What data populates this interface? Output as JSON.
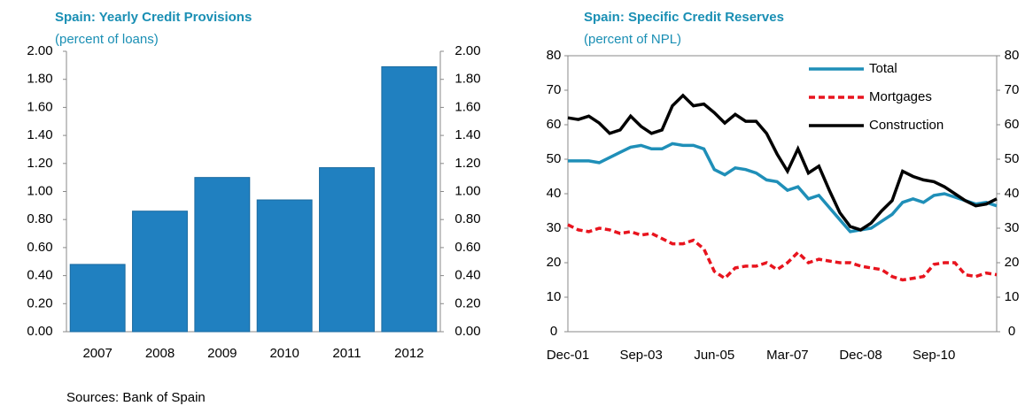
{
  "chart_data": [
    {
      "type": "bar",
      "title": "Spain: Yearly Credit Provisions",
      "subtitle": "(percent of loans)",
      "categories": [
        "2007",
        "2008",
        "2009",
        "2010",
        "2011",
        "2012"
      ],
      "values": [
        0.48,
        0.86,
        1.1,
        0.94,
        1.17,
        1.89
      ],
      "color": "#2080c0",
      "ylim": [
        0,
        2
      ],
      "yticks": [
        {
          "value": 0,
          "label": "0.00"
        },
        {
          "value": 0.2,
          "label": "0.20"
        },
        {
          "value": 0.4,
          "label": "0.40"
        },
        {
          "value": 0.6,
          "label": "0.60"
        },
        {
          "value": 0.8,
          "label": "0.80"
        },
        {
          "value": 1,
          "label": "1.00"
        },
        {
          "value": 1.2,
          "label": "1.20"
        },
        {
          "value": 1.4,
          "label": "1.40"
        },
        {
          "value": 1.6,
          "label": "1.60"
        },
        {
          "value": 1.8,
          "label": "1.80"
        },
        {
          "value": 2,
          "label": "2.00"
        }
      ],
      "y2lim": [
        0,
        2
      ],
      "y2ticks": [
        {
          "value": 0,
          "label": "0.00"
        },
        {
          "value": 0.2,
          "label": "0.20"
        },
        {
          "value": 0.4,
          "label": "0.40"
        },
        {
          "value": 0.6,
          "label": "0.60"
        },
        {
          "value": 0.8,
          "label": "0.80"
        },
        {
          "value": 1,
          "label": "1.00"
        },
        {
          "value": 1.2,
          "label": "1.20"
        },
        {
          "value": 1.4,
          "label": "1.40"
        },
        {
          "value": 1.6,
          "label": "1.60"
        },
        {
          "value": 1.8,
          "label": "1.80"
        },
        {
          "value": 2,
          "label": "2.00"
        }
      ],
      "grid": false
    },
    {
      "type": "line",
      "title": "Spain: Specific Credit Reserves",
      "subtitle": "(percent of NPL)",
      "categories": [
        "Dec-01",
        null,
        null,
        null,
        null,
        null,
        null,
        "Sep-03",
        null,
        null,
        null,
        null,
        null,
        null,
        "Jun-05",
        null,
        null,
        null,
        null,
        null,
        null,
        "Mar-07",
        null,
        null,
        null,
        null,
        null,
        null,
        "Dec-08",
        null,
        null,
        null,
        null,
        null,
        null,
        "Sep-10",
        null,
        null,
        null,
        null,
        null,
        null
      ],
      "series": [
        {
          "name": "Total",
          "color": "#1f8fb8",
          "dash": false,
          "values": [
            49.5,
            49.5,
            49.5,
            49,
            50.5,
            52,
            53.5,
            54,
            53,
            53,
            54.5,
            54,
            54,
            53,
            47,
            45.5,
            47.5,
            47,
            46,
            44,
            43.5,
            41,
            42,
            38.5,
            39.5,
            36,
            32.5,
            29,
            29.5,
            30,
            32,
            34,
            37.5,
            38.5,
            37.5,
            39.5,
            40,
            39,
            38,
            37,
            37.5,
            36.5
          ]
        },
        {
          "name": "Mortgages",
          "color": "#e8141e",
          "dash": true,
          "values": [
            31,
            29.5,
            29,
            30,
            29.5,
            28.5,
            29,
            28,
            28.5,
            27,
            25.5,
            25.5,
            26.5,
            24,
            17.5,
            15.5,
            18.5,
            19,
            19,
            20,
            18,
            20,
            23,
            20,
            21,
            20.5,
            20,
            20,
            19,
            18.5,
            18,
            16,
            15,
            15.5,
            16,
            19.5,
            20,
            20,
            16.5,
            16,
            17,
            16.5
          ]
        },
        {
          "name": "Construction",
          "color": "#000000",
          "dash": false,
          "values": [
            62,
            61.5,
            62.5,
            60.5,
            57.5,
            58.5,
            62.5,
            59.5,
            57.5,
            58.5,
            65.5,
            68.5,
            65.5,
            66,
            63.5,
            60.5,
            63,
            61,
            61,
            57.5,
            51.5,
            46.5,
            53,
            46,
            48,
            41,
            34.5,
            30.5,
            29.5,
            31.5,
            35,
            38,
            46.5,
            45,
            44,
            43.5,
            42,
            40,
            38,
            36.5,
            37,
            38.5
          ]
        }
      ],
      "ylim": [
        0,
        80
      ],
      "yticks": [
        0,
        10,
        20,
        30,
        40,
        50,
        60,
        70,
        80
      ],
      "y2lim": [
        0,
        80
      ],
      "y2ticks": [
        0,
        10,
        20,
        30,
        40,
        50,
        60,
        70,
        80
      ],
      "legend": "upper right",
      "grid": false
    }
  ],
  "source": "Sources: Bank of Spain"
}
